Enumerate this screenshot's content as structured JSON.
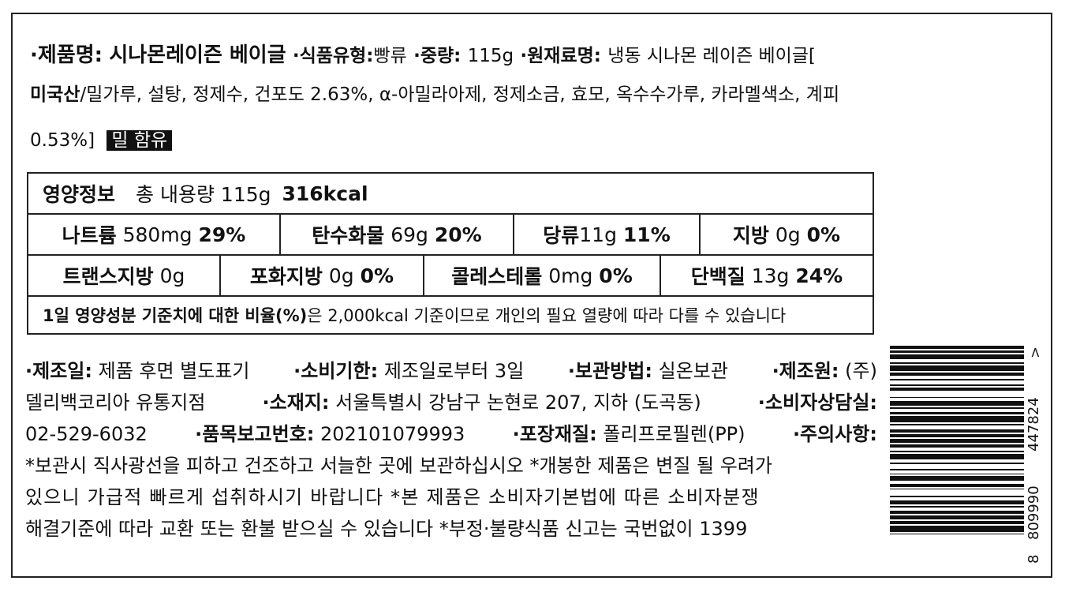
{
  "header": {
    "line1": {
      "name_label": "·제품명:",
      "name_value": "시나몬레이즌 베이글",
      "type_label": "·식품유형:",
      "type_value": "빵류",
      "weight_label": "·중량:",
      "weight_value": "115g",
      "ingredients_label": "·원재료명:",
      "ingredients_start": "냉동 시나몬 레이즌 베이글["
    },
    "line2": {
      "origin": "미국산",
      "text": "/밀가루, 설탕, 정제수, 건포도 2.63%, α-아밀라아제, 정제소금, 효모, 옥수수가루, 카라멜색소, 계피"
    },
    "line3": {
      "text": "0.53%]",
      "allergen": "밀 함유"
    }
  },
  "nutrition": {
    "header_label": "영양정보",
    "total_label": "총 내용량 115g",
    "kcal": "316kcal",
    "row1": [
      {
        "label": "나트륨",
        "amount": "580mg",
        "pct": "29%"
      },
      {
        "label": "탄수화물",
        "amount": "69g",
        "pct": "20%"
      },
      {
        "label": "당류",
        "amount": "11g",
        "pct": "11%"
      },
      {
        "label": "지방",
        "amount": "0g",
        "pct": "0%"
      }
    ],
    "row2": [
      {
        "label": "트랜스지방",
        "amount": "0g",
        "pct": ""
      },
      {
        "label": "포화지방",
        "amount": "0g",
        "pct": "0%"
      },
      {
        "label": "콜레스테롤",
        "amount": "0mg",
        "pct": "0%"
      },
      {
        "label": "단백질",
        "amount": "13g",
        "pct": "24%"
      }
    ],
    "note_bold": "1일 영양성분 기준치에 대한 비율(%)",
    "note_rest": "은 2,000kcal 기준이므로 개인의 필요 열량에 따라 다를 수 있습니다"
  },
  "info": {
    "mfg_label": "·제조일:",
    "mfg_value": "제품 후면 별도표기",
    "expiry_label": "·소비기한:",
    "expiry_value": "제조일로부터 3일",
    "storage_label": "·보관방법:",
    "storage_value": "실온보관",
    "maker_label": "·제조원:",
    "maker_value_start": "(주)",
    "maker_value_end": "델리백코리아 유통지점",
    "address_label": "·소재지:",
    "address_value": "서울특별시 강남구 논현로 207, 지하 (도곡동)",
    "consult_label": "·소비자상담실:",
    "phone": "02-529-6032",
    "report_label": "·품목보고번호:",
    "report_value": "202101079993",
    "package_label": "·포장재질:",
    "package_value": "폴리프로필렌(PP)",
    "caution_label": "·주의사항:",
    "caution1": "*보관시 직사광선을 피하고 건조하고 서늘한 곳에 보관하십시오 *개봉한 제품은 변질 될 우려가",
    "caution2": "있으니 가급적 빠르게 섭취하시기 바랍니다 *본 제품은 소비자기본법에 따른 소비자분쟁",
    "caution3": "해결기준에 따라 교환 또는 환불 받으실 수 있습니다 *부정·불량식품 신고는 국번없이 1399"
  },
  "barcode": {
    "digit_first": "8",
    "digits_group1": "809990",
    "digits_group2": "447824",
    "end_mark": ">"
  }
}
